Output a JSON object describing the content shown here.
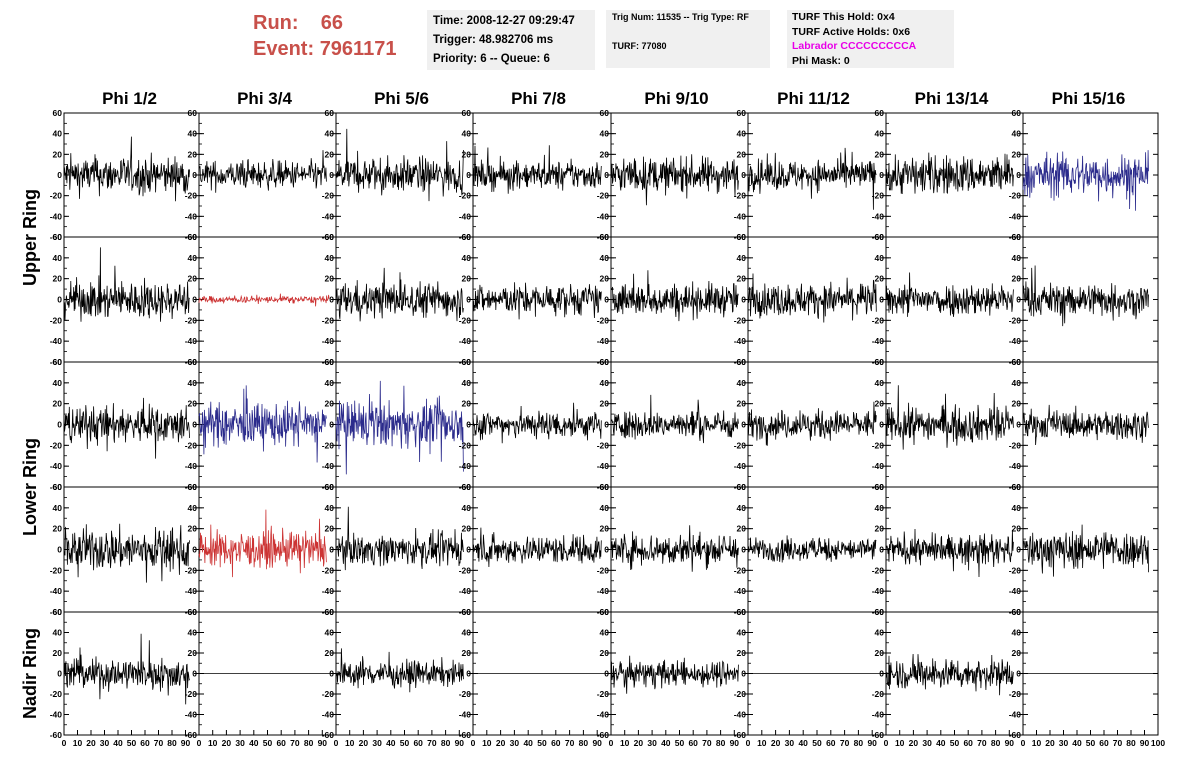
{
  "header": {
    "run_label": "Run:",
    "run_value": "66",
    "event_label": "Event:",
    "event_value": "7961171",
    "time": "Time: 2008-12-27 09:29:47",
    "trigger": "Trigger: 48.982706 ms",
    "priority": "Priority: 6 -- Queue: 6",
    "trig_num": "Trig Num: 11535 -- Trig Type: RF",
    "turf": "TURF: 77080",
    "turf_this_hold": "TURF This Hold: 0x4",
    "turf_active_holds": "TURF Active Holds: 0x6",
    "labrador": "Labrador CCCCCCCCCA",
    "phi_mask": "Phi Mask: 0"
  },
  "colors": {
    "normal": "#000000",
    "blue": "#2b2b8c",
    "red": "#cc3333",
    "run_text": "#c8504a",
    "labrador": "#e800e8",
    "box_bg": "#f0f0f0"
  },
  "chart_data": {
    "type": "line",
    "columns": [
      "Phi 1/2",
      "Phi 3/4",
      "Phi 5/6",
      "Phi 7/8",
      "Phi 9/10",
      "Phi 11/12",
      "Phi 13/14",
      "Phi 15/16"
    ],
    "rows": [
      "Upper Ring",
      "Lower Ring",
      "Nadir Ring"
    ],
    "xlim": [
      0,
      100
    ],
    "ylim": [
      -60,
      60
    ],
    "x_ticks": [
      0,
      10,
      20,
      30,
      40,
      50,
      60,
      70,
      80,
      90
    ],
    "x_last_tick": "100",
    "y_ticks": [
      60,
      40,
      20,
      0,
      -20,
      -40,
      -60
    ],
    "waveform_samples": 260,
    "panel_rows": [
      {
        "ring": "Upper Ring",
        "panels": [
          {
            "style": "normal",
            "amplitude": 16
          },
          {
            "style": "normal",
            "amplitude": 12
          },
          {
            "style": "normal",
            "amplitude": 15
          },
          {
            "style": "normal",
            "amplitude": 12
          },
          {
            "style": "normal",
            "amplitude": 15
          },
          {
            "style": "normal",
            "amplitude": 13
          },
          {
            "style": "normal",
            "amplitude": 17
          },
          {
            "style": "blue",
            "amplitude": 18
          }
        ]
      },
      {
        "ring": "Upper Ring",
        "panels": [
          {
            "style": "normal",
            "amplitude": 16
          },
          {
            "style": "red",
            "amplitude": 3
          },
          {
            "style": "normal",
            "amplitude": 15
          },
          {
            "style": "normal",
            "amplitude": 13
          },
          {
            "style": "normal",
            "amplitude": 14
          },
          {
            "style": "normal",
            "amplitude": 14
          },
          {
            "style": "normal",
            "amplitude": 14
          },
          {
            "style": "normal",
            "amplitude": 14
          }
        ]
      },
      {
        "ring": "Lower Ring",
        "panels": [
          {
            "style": "normal",
            "amplitude": 16
          },
          {
            "style": "blue",
            "amplitude": 18
          },
          {
            "style": "blue",
            "amplitude": 19
          },
          {
            "style": "normal",
            "amplitude": 12
          },
          {
            "style": "normal",
            "amplitude": 12
          },
          {
            "style": "normal",
            "amplitude": 12
          },
          {
            "style": "normal",
            "amplitude": 15
          },
          {
            "style": "normal",
            "amplitude": 12
          }
        ]
      },
      {
        "ring": "Lower Ring",
        "panels": [
          {
            "style": "normal",
            "amplitude": 18
          },
          {
            "style": "red",
            "amplitude": 15
          },
          {
            "style": "normal",
            "amplitude": 13
          },
          {
            "style": "normal",
            "amplitude": 12
          },
          {
            "style": "normal",
            "amplitude": 14
          },
          {
            "style": "normal",
            "amplitude": 10
          },
          {
            "style": "normal",
            "amplitude": 12
          },
          {
            "style": "normal",
            "amplitude": 16
          }
        ]
      },
      {
        "ring": "Nadir Ring",
        "panels": [
          {
            "style": "normal",
            "amplitude": 14
          },
          {
            "style": "flat",
            "amplitude": 0
          },
          {
            "style": "normal",
            "amplitude": 11
          },
          {
            "style": "flat",
            "amplitude": 0
          },
          {
            "style": "normal",
            "amplitude": 11
          },
          {
            "style": "flat",
            "amplitude": 0
          },
          {
            "style": "normal",
            "amplitude": 13
          },
          {
            "style": "flat",
            "amplitude": 0
          }
        ]
      }
    ]
  }
}
